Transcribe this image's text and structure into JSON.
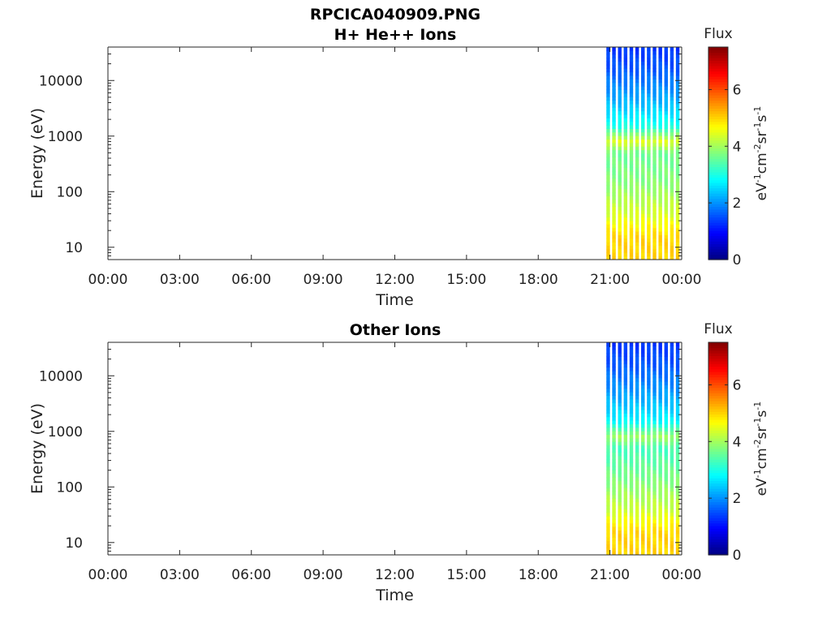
{
  "figure": {
    "title": "RPCICA040909.PNG"
  },
  "chart_data": [
    {
      "type": "heatmap",
      "title": "H+ He++ Ions",
      "xlabel": "Time",
      "ylabel": "Energy (eV)",
      "y_scale": "log",
      "ylim": [
        6,
        40000
      ],
      "xlim": [
        "00:00",
        "24:00"
      ],
      "x_tick_labels": [
        "00:00",
        "03:00",
        "06:00",
        "09:00",
        "12:00",
        "15:00",
        "18:00",
        "21:00",
        "00:00"
      ],
      "y_tick_labels": [
        "10",
        "100",
        "1000",
        "10000"
      ],
      "y_tick_values": [
        10,
        100,
        1000,
        10000
      ],
      "colorbar": {
        "label": "Flux",
        "unit_parts": [
          "eV",
          "-1",
          "cm",
          "-2",
          "sr",
          "-1",
          "s",
          "-1"
        ],
        "range": [
          0,
          7.5
        ],
        "tick_labels": [
          "0",
          "2",
          "4",
          "6"
        ],
        "tick_values": [
          0,
          2,
          4,
          6
        ],
        "colormap": "jet"
      },
      "data_start_hour": 20.85,
      "data_end_hour": 24.0,
      "sweep_count": 13,
      "energy_profile": [
        {
          "energy": 6,
          "flux": 5.0
        },
        {
          "energy": 15,
          "flux": 5.0
        },
        {
          "energy": 40,
          "flux": 4.4
        },
        {
          "energy": 150,
          "flux": 3.8
        },
        {
          "energy": 500,
          "flux": 3.6
        },
        {
          "energy": 800,
          "flux": 4.5
        },
        {
          "energy": 1500,
          "flux": 3.0
        },
        {
          "energy": 4000,
          "flux": 2.3
        },
        {
          "energy": 15000,
          "flux": 1.6
        },
        {
          "energy": 40000,
          "flux": 1.3
        }
      ]
    },
    {
      "type": "heatmap",
      "title": "Other Ions",
      "xlabel": "Time",
      "ylabel": "Energy (eV)",
      "y_scale": "log",
      "ylim": [
        6,
        40000
      ],
      "xlim": [
        "00:00",
        "24:00"
      ],
      "x_tick_labels": [
        "00:00",
        "03:00",
        "06:00",
        "09:00",
        "12:00",
        "15:00",
        "18:00",
        "21:00",
        "00:00"
      ],
      "y_tick_labels": [
        "10",
        "100",
        "1000",
        "10000"
      ],
      "y_tick_values": [
        10,
        100,
        1000,
        10000
      ],
      "colorbar": {
        "label": "Flux",
        "unit_parts": [
          "eV",
          "-1",
          "cm",
          "-2",
          "sr",
          "-1",
          "s",
          "-1"
        ],
        "range": [
          0,
          7.5
        ],
        "tick_labels": [
          "0",
          "2",
          "4",
          "6"
        ],
        "tick_values": [
          0,
          2,
          4,
          6
        ],
        "colormap": "jet"
      },
      "data_start_hour": 20.85,
      "data_end_hour": 24.0,
      "sweep_count": 13,
      "energy_profile": [
        {
          "energy": 6,
          "flux": 5.0
        },
        {
          "energy": 15,
          "flux": 5.0
        },
        {
          "energy": 40,
          "flux": 4.3
        },
        {
          "energy": 150,
          "flux": 3.7
        },
        {
          "energy": 500,
          "flux": 3.3
        },
        {
          "energy": 800,
          "flux": 4.0
        },
        {
          "energy": 1500,
          "flux": 2.8
        },
        {
          "energy": 4000,
          "flux": 2.2
        },
        {
          "energy": 15000,
          "flux": 1.6
        },
        {
          "energy": 40000,
          "flux": 1.3
        }
      ]
    }
  ]
}
